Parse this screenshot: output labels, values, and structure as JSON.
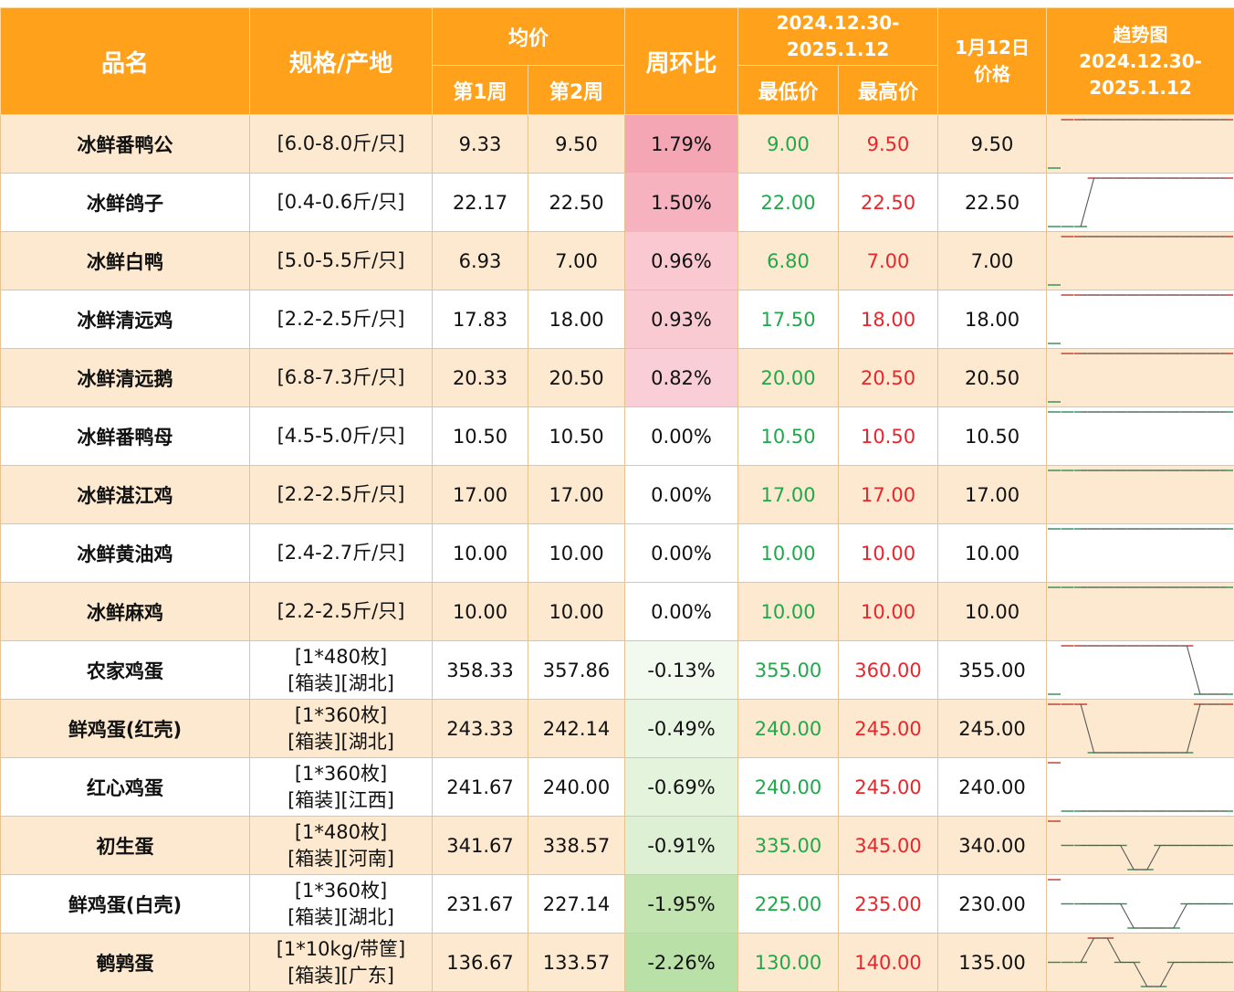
{
  "header": {
    "name": "品名",
    "spec": "规格/产地",
    "avg": "均价",
    "week1": "第1周",
    "week2": "第2周",
    "wow": "周环比",
    "range_line1": "2024.12.30-",
    "range_line2": "2025.1.12",
    "low": "最低价",
    "high": "最高价",
    "jan12_line1": "1月12日",
    "jan12_line2": "价格",
    "trend_line1": "趋势图",
    "trend_line2": "2024.12.30-",
    "trend_line3": "2025.1.12"
  },
  "colors": {
    "header_bg": "#ffa11a",
    "row_alt_bg": "#fde9cf",
    "low_text": "#21a84b",
    "high_text": "#e8262c",
    "pct_positive_strong": "#f4a6b4",
    "pct_negative_strong": "#b9e0a7"
  },
  "rows": [
    {
      "name": "冰鲜番鸭公",
      "spec1": "[6.0-8.0斤/只]",
      "spec2": "",
      "w1": "9.33",
      "w2": "9.50",
      "pct": "1.79%",
      "pct_value": 1.79,
      "low": "9.00",
      "high": "9.50",
      "jan12": "9.50",
      "trend": [
        9.0,
        9.5,
        9.5,
        9.5,
        9.5,
        9.5,
        9.5,
        9.5,
        9.5,
        9.5,
        9.5,
        9.5,
        9.5,
        9.5
      ]
    },
    {
      "name": "冰鲜鸽子",
      "spec1": "[0.4-0.6斤/只]",
      "spec2": "",
      "w1": "22.17",
      "w2": "22.50",
      "pct": "1.50%",
      "pct_value": 1.5,
      "low": "22.00",
      "high": "22.50",
      "jan12": "22.50",
      "trend": [
        22.0,
        22.0,
        22.0,
        22.5,
        22.5,
        22.5,
        22.5,
        22.5,
        22.5,
        22.5,
        22.5,
        22.5,
        22.5,
        22.5
      ]
    },
    {
      "name": "冰鲜白鸭",
      "spec1": "[5.0-5.5斤/只]",
      "spec2": "",
      "w1": "6.93",
      "w2": "7.00",
      "pct": "0.96%",
      "pct_value": 0.96,
      "low": "6.80",
      "high": "7.00",
      "jan12": "7.00",
      "trend": [
        6.8,
        7.0,
        7.0,
        7.0,
        7.0,
        7.0,
        7.0,
        7.0,
        7.0,
        7.0,
        7.0,
        7.0,
        7.0,
        7.0
      ]
    },
    {
      "name": "冰鲜清远鸡",
      "spec1": "[2.2-2.5斤/只]",
      "spec2": "",
      "w1": "17.83",
      "w2": "18.00",
      "pct": "0.93%",
      "pct_value": 0.93,
      "low": "17.50",
      "high": "18.00",
      "jan12": "18.00",
      "trend": [
        17.5,
        18.0,
        18.0,
        18.0,
        18.0,
        18.0,
        18.0,
        18.0,
        18.0,
        18.0,
        18.0,
        18.0,
        18.0,
        18.0
      ]
    },
    {
      "name": "冰鲜清远鹅",
      "spec1": "[6.8-7.3斤/只]",
      "spec2": "",
      "w1": "20.33",
      "w2": "20.50",
      "pct": "0.82%",
      "pct_value": 0.82,
      "low": "20.00",
      "high": "20.50",
      "jan12": "20.50",
      "trend": [
        20.0,
        20.5,
        20.5,
        20.5,
        20.5,
        20.5,
        20.5,
        20.5,
        20.5,
        20.5,
        20.5,
        20.5,
        20.5,
        20.5
      ]
    },
    {
      "name": "冰鲜番鸭母",
      "spec1": "[4.5-5.0斤/只]",
      "spec2": "",
      "w1": "10.50",
      "w2": "10.50",
      "pct": "0.00%",
      "pct_value": 0,
      "low": "10.50",
      "high": "10.50",
      "jan12": "10.50",
      "trend": [
        10.5,
        10.5,
        10.5,
        10.5,
        10.5,
        10.5,
        10.5,
        10.5,
        10.5,
        10.5,
        10.5,
        10.5,
        10.5,
        10.5
      ]
    },
    {
      "name": "冰鲜湛江鸡",
      "spec1": "[2.2-2.5斤/只]",
      "spec2": "",
      "w1": "17.00",
      "w2": "17.00",
      "pct": "0.00%",
      "pct_value": 0,
      "low": "17.00",
      "high": "17.00",
      "jan12": "17.00",
      "trend": [
        17.0,
        17.0,
        17.0,
        17.0,
        17.0,
        17.0,
        17.0,
        17.0,
        17.0,
        17.0,
        17.0,
        17.0,
        17.0,
        17.0
      ]
    },
    {
      "name": "冰鲜黄油鸡",
      "spec1": "[2.4-2.7斤/只]",
      "spec2": "",
      "w1": "10.00",
      "w2": "10.00",
      "pct": "0.00%",
      "pct_value": 0,
      "low": "10.00",
      "high": "10.00",
      "jan12": "10.00",
      "trend": [
        10.0,
        10.0,
        10.0,
        10.0,
        10.0,
        10.0,
        10.0,
        10.0,
        10.0,
        10.0,
        10.0,
        10.0,
        10.0,
        10.0
      ]
    },
    {
      "name": "冰鲜麻鸡",
      "spec1": "[2.2-2.5斤/只]",
      "spec2": "",
      "w1": "10.00",
      "w2": "10.00",
      "pct": "0.00%",
      "pct_value": 0,
      "low": "10.00",
      "high": "10.00",
      "jan12": "10.00",
      "trend": [
        10.0,
        10.0,
        10.0,
        10.0,
        10.0,
        10.0,
        10.0,
        10.0,
        10.0,
        10.0,
        10.0,
        10.0,
        10.0,
        10.0
      ]
    },
    {
      "name": "农家鸡蛋",
      "spec1": "[1*480枚]",
      "spec2": "[箱装][湖北]",
      "w1": "358.33",
      "w2": "357.86",
      "pct": "-0.13%",
      "pct_value": -0.13,
      "low": "355.00",
      "high": "360.00",
      "jan12": "355.00",
      "trend": [
        355.0,
        360.0,
        360.0,
        360.0,
        360.0,
        360.0,
        360.0,
        360.0,
        360.0,
        360.0,
        360.0,
        355.0,
        355.0,
        355.0
      ]
    },
    {
      "name": "鲜鸡蛋(红壳)",
      "spec1": "[1*360枚]",
      "spec2": "[箱装][湖北]",
      "w1": "243.33",
      "w2": "242.14",
      "pct": "-0.49%",
      "pct_value": -0.49,
      "low": "240.00",
      "high": "245.00",
      "jan12": "245.00",
      "trend": [
        245.0,
        245.0,
        245.0,
        240.0,
        240.0,
        240.0,
        240.0,
        240.0,
        240.0,
        240.0,
        240.0,
        245.0,
        245.0,
        245.0
      ]
    },
    {
      "name": "红心鸡蛋",
      "spec1": "[1*360枚]",
      "spec2": "[箱装][江西]",
      "w1": "241.67",
      "w2": "240.00",
      "pct": "-0.69%",
      "pct_value": -0.69,
      "low": "240.00",
      "high": "245.00",
      "jan12": "240.00",
      "trend": [
        245.0,
        240.0,
        240.0,
        240.0,
        240.0,
        240.0,
        240.0,
        240.0,
        240.0,
        240.0,
        240.0,
        240.0,
        240.0,
        240.0
      ]
    },
    {
      "name": "初生蛋",
      "spec1": "[1*480枚]",
      "spec2": "[箱装][河南]",
      "w1": "341.67",
      "w2": "338.57",
      "pct": "-0.91%",
      "pct_value": -0.91,
      "low": "335.00",
      "high": "345.00",
      "jan12": "340.00",
      "trend": [
        345.0,
        340.0,
        340.0,
        340.0,
        340.0,
        340.0,
        335.0,
        335.0,
        340.0,
        340.0,
        340.0,
        340.0,
        340.0,
        340.0
      ]
    },
    {
      "name": "鲜鸡蛋(白壳)",
      "spec1": "[1*360枚]",
      "spec2": "[箱装][湖北]",
      "w1": "231.67",
      "w2": "227.14",
      "pct": "-1.95%",
      "pct_value": -1.95,
      "low": "225.00",
      "high": "235.00",
      "jan12": "230.00",
      "trend": [
        235.0,
        230.0,
        230.0,
        230.0,
        230.0,
        230.0,
        225.0,
        225.0,
        225.0,
        225.0,
        230.0,
        230.0,
        230.0,
        230.0
      ]
    },
    {
      "name": "鹌鹑蛋",
      "spec1": "[1*10kg/带筐]",
      "spec2": "[箱装][广东]",
      "w1": "136.67",
      "w2": "133.57",
      "pct": "-2.26%",
      "pct_value": -2.26,
      "low": "130.00",
      "high": "140.00",
      "jan12": "135.00",
      "trend": [
        135.0,
        135.0,
        135.0,
        140.0,
        140.0,
        135.0,
        135.0,
        130.0,
        130.0,
        135.0,
        135.0,
        135.0,
        135.0,
        135.0
      ]
    }
  ]
}
